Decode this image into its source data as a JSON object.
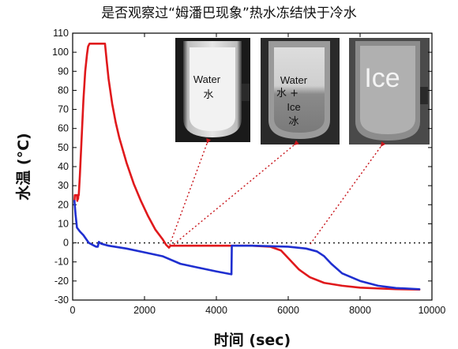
{
  "chart_data": {
    "type": "line",
    "title": "是否观察过“姆潘巴现象”热水冻结快于冷水",
    "xlabel": "时间 (sec)",
    "ylabel": "水温 (°C)",
    "xlim": [
      0,
      10000
    ],
    "ylim": [
      -30,
      110
    ],
    "x_ticks": [
      "0",
      "2000",
      "4000",
      "6000",
      "8000",
      "10000"
    ],
    "y_ticks": [
      "110",
      "100",
      "90",
      "80",
      "70",
      "60",
      "50",
      "40",
      "30",
      "20",
      "10",
      "0",
      "-10",
      "-20",
      "-30"
    ],
    "reference_line": {
      "y": 0,
      "style": "dotted"
    },
    "series": [
      {
        "color": "#e0191c",
        "points": [
          [
            50,
            22
          ],
          [
            60,
            25
          ],
          [
            120,
            25
          ],
          [
            130,
            22
          ],
          [
            140,
            25
          ],
          [
            150,
            23
          ],
          [
            160,
            25
          ],
          [
            170,
            25
          ],
          [
            200,
            35
          ],
          [
            250,
            55
          ],
          [
            300,
            75
          ],
          [
            350,
            90
          ],
          [
            400,
            99
          ],
          [
            430,
            103
          ],
          [
            470,
            104.5
          ],
          [
            900,
            104.5
          ],
          [
            950,
            95
          ],
          [
            1000,
            86
          ],
          [
            1100,
            73
          ],
          [
            1200,
            63
          ],
          [
            1300,
            55
          ],
          [
            1500,
            42
          ],
          [
            1700,
            31
          ],
          [
            1900,
            22
          ],
          [
            2100,
            14
          ],
          [
            2300,
            7
          ],
          [
            2500,
            2
          ],
          [
            2600,
            -1
          ],
          [
            2680,
            -2.5
          ],
          [
            2720,
            -1.5
          ],
          [
            2800,
            -1.5
          ],
          [
            4000,
            -1.5
          ],
          [
            5000,
            -1.5
          ],
          [
            5500,
            -2
          ],
          [
            5800,
            -4
          ],
          [
            6000,
            -8
          ],
          [
            6300,
            -14
          ],
          [
            6600,
            -18
          ],
          [
            7000,
            -21
          ],
          [
            7500,
            -22.5
          ],
          [
            8000,
            -23.5
          ],
          [
            9000,
            -24.3
          ],
          [
            9650,
            -24.5
          ]
        ]
      },
      {
        "color": "#1f2fd0",
        "points": [
          [
            50,
            22
          ],
          [
            80,
            15
          ],
          [
            120,
            8
          ],
          [
            200,
            6
          ],
          [
            300,
            4
          ],
          [
            450,
            0
          ],
          [
            550,
            -1
          ],
          [
            600,
            -1.5
          ],
          [
            650,
            -2
          ],
          [
            700,
            -2
          ],
          [
            730,
            0.5
          ],
          [
            760,
            0
          ],
          [
            800,
            -0.5
          ],
          [
            1000,
            -1.5
          ],
          [
            1500,
            -3
          ],
          [
            2000,
            -5
          ],
          [
            2500,
            -7
          ],
          [
            3000,
            -11
          ],
          [
            3500,
            -13
          ],
          [
            4000,
            -15
          ],
          [
            4420,
            -16.5
          ],
          [
            4430,
            -1.5
          ],
          [
            5000,
            -1.5
          ],
          [
            6000,
            -2
          ],
          [
            6500,
            -3
          ],
          [
            6800,
            -4.5
          ],
          [
            7000,
            -7
          ],
          [
            7200,
            -11
          ],
          [
            7500,
            -16
          ],
          [
            8000,
            -20
          ],
          [
            8500,
            -22.5
          ],
          [
            9000,
            -23.7
          ],
          [
            9650,
            -24.3
          ]
        ]
      }
    ],
    "insets": [
      {
        "labels": [
          "Water",
          "水"
        ],
        "pointer_x": 2700
      },
      {
        "labels": [
          "Water",
          "水 +",
          "Ice",
          "冰"
        ],
        "pointer_x": 2800
      },
      {
        "labels": [
          "Ice"
        ],
        "pointer_x": 6600
      }
    ]
  }
}
